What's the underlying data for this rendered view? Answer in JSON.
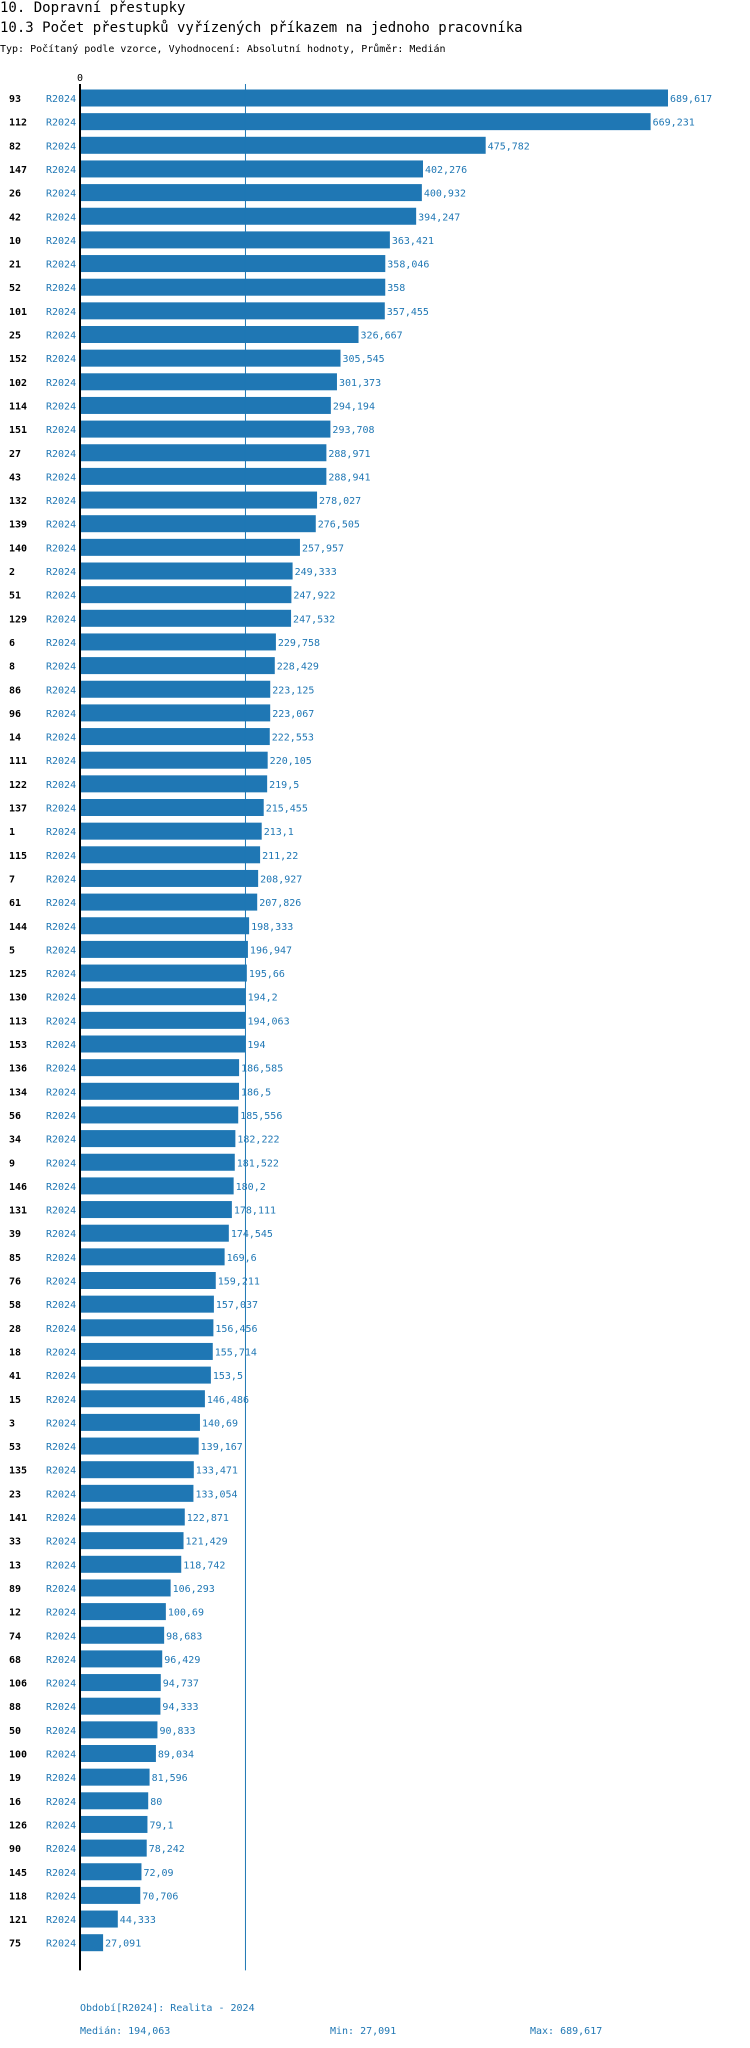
{
  "header": {
    "title": "10. Dopravní přestupky",
    "subtitle": "10.3 Počet přestupků vyřízených příkazem na jednoho pracovníka",
    "type_line": "Typ: Počítaný podle vzorce, Vyhodnocení: Absolutní hodnoty, Průměr: Medián"
  },
  "footer": {
    "period": "Období[R2024]: Realita - 2024",
    "median": "Medián: 194,063",
    "min": "Min: 27,091",
    "max": "Max: 689,617"
  },
  "colors": {
    "bar": "#1f77b4",
    "label": "#1f77b4",
    "axis": "#000000",
    "median_line": "#1f77b4"
  },
  "chart_data": {
    "type": "bar",
    "orientation": "horizontal",
    "period_label": "R2024",
    "axis_zero_label": "0",
    "median": 194.063,
    "xlim": [
      0,
      689.617
    ],
    "ids": [
      "93",
      "112",
      "82",
      "147",
      "26",
      "42",
      "10",
      "21",
      "52",
      "101",
      "25",
      "152",
      "102",
      "114",
      "151",
      "27",
      "43",
      "132",
      "139",
      "140",
      "2",
      "51",
      "129",
      "6",
      "8",
      "86",
      "96",
      "14",
      "111",
      "122",
      "137",
      "1",
      "115",
      "7",
      "61",
      "144",
      "5",
      "125",
      "130",
      "113",
      "153",
      "136",
      "134",
      "56",
      "34",
      "9",
      "146",
      "131",
      "39",
      "85",
      "76",
      "58",
      "28",
      "18",
      "41",
      "15",
      "3",
      "53",
      "135",
      "23",
      "141",
      "33",
      "13",
      "89",
      "12",
      "74",
      "68",
      "106",
      "88",
      "50",
      "100",
      "19",
      "16",
      "126",
      "90",
      "145",
      "118",
      "121",
      "75"
    ],
    "values": [
      689.617,
      669.231,
      475.782,
      402.276,
      400.932,
      394.247,
      363.421,
      358.046,
      358,
      357.455,
      326.667,
      305.545,
      301.373,
      294.194,
      293.708,
      288.971,
      288.941,
      278.027,
      276.505,
      257.957,
      249.333,
      247.922,
      247.532,
      229.758,
      228.429,
      223.125,
      223.067,
      222.553,
      220.105,
      219.5,
      215.455,
      213.1,
      211.22,
      208.927,
      207.826,
      198.333,
      196.947,
      195.66,
      194.2,
      194.063,
      194,
      186.585,
      186.5,
      185.556,
      182.222,
      181.522,
      180.2,
      178.111,
      174.545,
      169.6,
      159.211,
      157.037,
      156.456,
      155.714,
      153.5,
      146.486,
      140.69,
      139.167,
      133.471,
      133.054,
      122.871,
      121.429,
      118.742,
      106.293,
      100.69,
      98.683,
      96.429,
      94.737,
      94.333,
      90.833,
      89.034,
      81.596,
      80,
      79.1,
      78.242,
      72.09,
      70.706,
      44.333,
      27.091
    ],
    "value_labels": [
      "689,617",
      "669,231",
      "475,782",
      "402,276",
      "400,932",
      "394,247",
      "363,421",
      "358,046",
      "358",
      "357,455",
      "326,667",
      "305,545",
      "301,373",
      "294,194",
      "293,708",
      "288,971",
      "288,941",
      "278,027",
      "276,505",
      "257,957",
      "249,333",
      "247,922",
      "247,532",
      "229,758",
      "228,429",
      "223,125",
      "223,067",
      "222,553",
      "220,105",
      "219,5",
      "215,455",
      "213,1",
      "211,22",
      "208,927",
      "207,826",
      "198,333",
      "196,947",
      "195,66",
      "194,2",
      "194,063",
      "194",
      "186,585",
      "186,5",
      "185,556",
      "182,222",
      "181,522",
      "180,2",
      "178,111",
      "174,545",
      "169,6",
      "159,211",
      "157,037",
      "156,456",
      "155,714",
      "153,5",
      "146,486",
      "140,69",
      "139,167",
      "133,471",
      "133,054",
      "122,871",
      "121,429",
      "118,742",
      "106,293",
      "100,69",
      "98,683",
      "96,429",
      "94,737",
      "94,333",
      "90,833",
      "89,034",
      "81,596",
      "80",
      "79,1",
      "78,242",
      "72,09",
      "70,706",
      "44,333",
      "27,091"
    ]
  }
}
